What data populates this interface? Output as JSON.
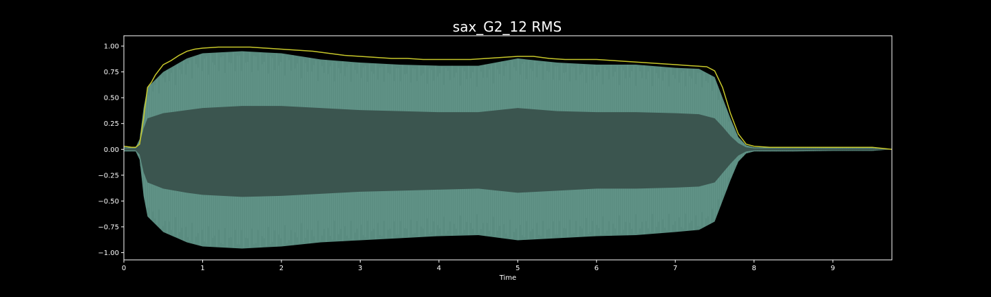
{
  "chart_data": {
    "type": "area",
    "title": "sax_G2_12 RMS",
    "xlabel": "Time",
    "ylabel": "",
    "xlim": [
      0,
      9.75
    ],
    "ylim": [
      -1.07,
      1.1
    ],
    "x_ticks": [
      0,
      1,
      2,
      3,
      4,
      5,
      6,
      7,
      8,
      9
    ],
    "x_tick_labels": [
      "0",
      "1",
      "2",
      "3",
      "4",
      "5",
      "6",
      "7",
      "8",
      "9"
    ],
    "y_ticks": [
      1.0,
      0.75,
      0.5,
      0.25,
      0.0,
      -0.25,
      -0.5,
      -0.75,
      -1.0
    ],
    "y_tick_labels": [
      "1.00",
      "0.75",
      "0.50",
      "0.25",
      "0.00",
      "−0.25",
      "−0.50",
      "−0.75",
      "−1.00"
    ],
    "grid": false,
    "colors": {
      "background": "#000000",
      "axes": "#ffffff",
      "waveform_outer": "#5a8c80",
      "waveform_inner": "#3b554f",
      "rms": "#c8c82a"
    },
    "series": [
      {
        "kind": "waveform-envelope",
        "x": [
          0,
          0.15,
          0.2,
          0.25,
          0.3,
          0.5,
          0.8,
          1.0,
          1.5,
          2.0,
          2.5,
          3.0,
          3.5,
          4.0,
          4.5,
          5.0,
          5.5,
          6.0,
          6.5,
          7.0,
          7.3,
          7.5,
          7.6,
          7.7,
          7.8,
          7.9,
          8.0,
          8.5,
          9.0,
          9.5,
          9.75
        ],
        "upper": [
          0.02,
          0.02,
          0.1,
          0.4,
          0.6,
          0.75,
          0.88,
          0.93,
          0.95,
          0.93,
          0.87,
          0.84,
          0.82,
          0.81,
          0.81,
          0.88,
          0.84,
          0.82,
          0.82,
          0.79,
          0.78,
          0.7,
          0.5,
          0.3,
          0.12,
          0.04,
          0.02,
          0.02,
          0.015,
          0.015,
          0.0
        ],
        "lower": [
          -0.02,
          -0.02,
          -0.1,
          -0.45,
          -0.65,
          -0.8,
          -0.9,
          -0.94,
          -0.96,
          -0.94,
          -0.9,
          -0.88,
          -0.86,
          -0.84,
          -0.83,
          -0.88,
          -0.86,
          -0.84,
          -0.83,
          -0.8,
          -0.78,
          -0.7,
          -0.5,
          -0.3,
          -0.12,
          -0.04,
          -0.02,
          -0.02,
          -0.015,
          -0.015,
          0.0
        ],
        "inner_upper": [
          0.01,
          0.01,
          0.05,
          0.2,
          0.3,
          0.35,
          0.38,
          0.4,
          0.42,
          0.42,
          0.4,
          0.38,
          0.37,
          0.36,
          0.36,
          0.4,
          0.37,
          0.36,
          0.36,
          0.35,
          0.34,
          0.3,
          0.22,
          0.13,
          0.06,
          0.02,
          0.01,
          0.01,
          0.008,
          0.008,
          0.0
        ],
        "inner_lower": [
          -0.01,
          -0.01,
          -0.05,
          -0.22,
          -0.32,
          -0.38,
          -0.42,
          -0.44,
          -0.46,
          -0.45,
          -0.43,
          -0.41,
          -0.4,
          -0.39,
          -0.38,
          -0.42,
          -0.4,
          -0.38,
          -0.38,
          -0.37,
          -0.36,
          -0.32,
          -0.23,
          -0.14,
          -0.06,
          -0.02,
          -0.01,
          -0.01,
          -0.008,
          -0.008,
          0.0
        ]
      },
      {
        "kind": "rms-line",
        "x": [
          0,
          0.1,
          0.15,
          0.2,
          0.25,
          0.3,
          0.35,
          0.4,
          0.5,
          0.6,
          0.7,
          0.8,
          0.9,
          1.0,
          1.2,
          1.4,
          1.6,
          1.8,
          2.0,
          2.2,
          2.4,
          2.6,
          2.8,
          3.0,
          3.2,
          3.4,
          3.6,
          3.8,
          4.0,
          4.2,
          4.4,
          4.6,
          4.8,
          5.0,
          5.2,
          5.4,
          5.6,
          5.8,
          6.0,
          6.2,
          6.4,
          6.6,
          6.8,
          7.0,
          7.2,
          7.4,
          7.5,
          7.6,
          7.7,
          7.8,
          7.9,
          8.0,
          8.2,
          8.5,
          9.0,
          9.5,
          9.75
        ],
        "y": [
          0.03,
          0.02,
          0.02,
          0.05,
          0.3,
          0.6,
          0.65,
          0.72,
          0.82,
          0.86,
          0.91,
          0.95,
          0.97,
          0.98,
          0.99,
          0.99,
          0.99,
          0.98,
          0.97,
          0.96,
          0.95,
          0.93,
          0.91,
          0.9,
          0.89,
          0.88,
          0.88,
          0.87,
          0.87,
          0.87,
          0.87,
          0.88,
          0.89,
          0.9,
          0.9,
          0.88,
          0.87,
          0.87,
          0.87,
          0.86,
          0.85,
          0.84,
          0.83,
          0.82,
          0.81,
          0.8,
          0.76,
          0.6,
          0.35,
          0.15,
          0.05,
          0.03,
          0.02,
          0.02,
          0.02,
          0.02,
          0.0
        ]
      }
    ]
  }
}
